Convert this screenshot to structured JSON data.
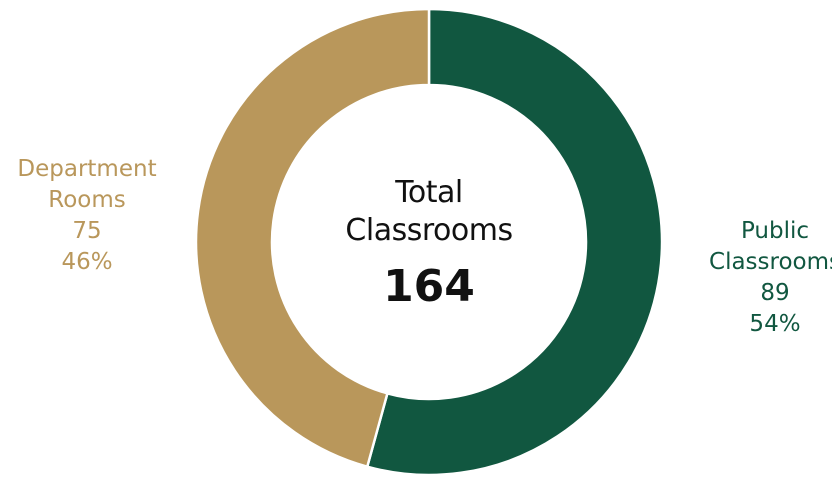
{
  "chart_data": {
    "type": "donut",
    "categories": [
      "Public Classrooms",
      "Department Rooms"
    ],
    "values": [
      89,
      75
    ],
    "percentages": [
      54,
      46
    ],
    "percentage_labels": [
      "54%",
      "46%"
    ],
    "colors": [
      "#115740",
      "#b9975b"
    ],
    "center_title": "Total Classrooms",
    "center_value": 164
  }
}
